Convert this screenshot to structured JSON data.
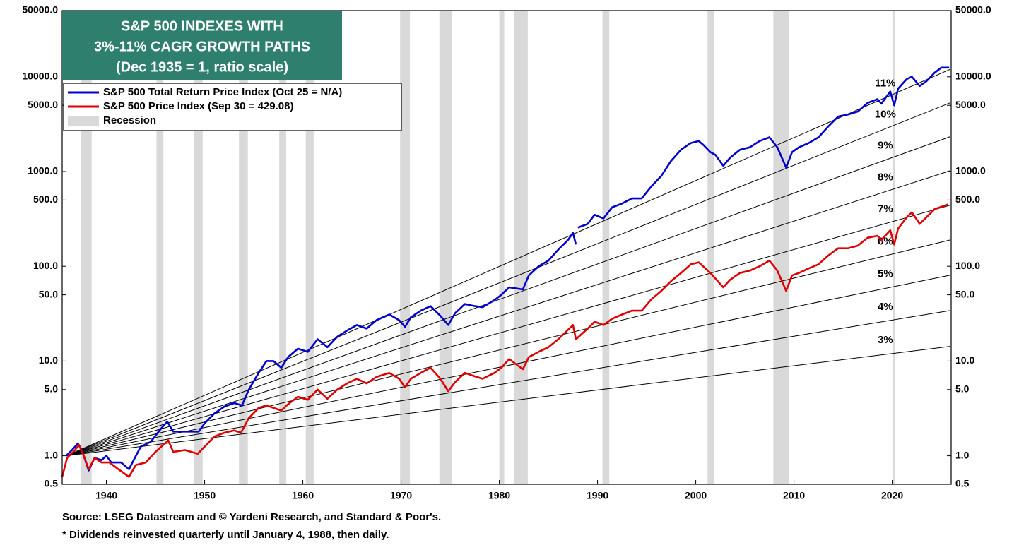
{
  "chart_data": {
    "type": "line",
    "title_lines": [
      "S&P 500 INDEXES WITH",
      "3%-11% CAGR GROWTH PATHS"
    ],
    "subtitle": "(Dec 1935 = 1, ratio scale)",
    "yscale": "log",
    "xlim": [
      1935.5,
      2026
    ],
    "xticks": [
      1940,
      1950,
      1960,
      1970,
      1980,
      1990,
      2000,
      2010,
      2020
    ],
    "ylim": [
      0.5,
      50000
    ],
    "yticks": [
      0.5,
      {
        "value": 1,
        "label": "1.0"
      },
      {
        "value": 5,
        "label": "5.0"
      },
      {
        "value": 10,
        "label": "10.0"
      },
      {
        "value": 50,
        "label": "50.0"
      },
      {
        "value": 100,
        "label": "100.0"
      },
      {
        "value": 500,
        "label": "500.0"
      },
      {
        "value": 1000,
        "label": "1000.0"
      },
      {
        "value": 5000,
        "label": "5000.0"
      },
      {
        "value": 10000,
        "label": "10000.0"
      },
      {
        "value": 50000,
        "label": "50000.0"
      }
    ],
    "y2lim": [
      0.5,
      50000
    ],
    "y2ticks": [
      0.5,
      {
        "value": 1,
        "label": "1.0"
      },
      {
        "value": 5,
        "label": "5.0"
      },
      {
        "value": 10,
        "label": "10.0"
      },
      {
        "value": 50,
        "label": "50.0"
      },
      {
        "value": 100,
        "label": "100.0"
      },
      {
        "value": 500,
        "label": "500.0"
      },
      {
        "value": 1000,
        "label": "1000.0"
      },
      {
        "value": 5000,
        "label": "5000.0"
      },
      {
        "value": 10000,
        "label": "10000.0"
      },
      {
        "value": 50000,
        "label": "50000.0"
      }
    ],
    "grid": false,
    "legend": "top-left",
    "series": [
      {
        "name": "S&P 500 Total Return Price Index (Oct 25 = N/A)",
        "color": "#0000cc",
        "x": [
          1935.9,
          1936.5,
          1937.1,
          1937.5,
          1938.2,
          1938.8,
          1939.5,
          1940.0,
          1940.5,
          1941.5,
          1942.3,
          1943.0,
          1943.5,
          1944.5,
          1945.5,
          1946.2,
          1946.8,
          1948.0,
          1949.4,
          1950.0,
          1951.0,
          1952.0,
          1953.0,
          1953.8,
          1954.5,
          1955.5,
          1956.3,
          1957.0,
          1957.8,
          1958.5,
          1959.5,
          1960.5,
          1961.5,
          1962.5,
          1963.5,
          1964.5,
          1965.5,
          1966.5,
          1967.5,
          1968.8,
          1969.8,
          1970.4,
          1971.0,
          1972.0,
          1973.0,
          1974.0,
          1974.8,
          1975.5,
          1976.5,
          1977.5,
          1978.3,
          1979.5,
          1980.2,
          1981.0,
          1982.4,
          1983.0,
          1984.0,
          1985.0,
          1986.0,
          1987.0,
          1987.5,
          1987.8,
          1987.9,
          1988.0,
          1989.0,
          1989.7,
          1990.6,
          1991.5,
          1992.5,
          1993.5,
          1994.5,
          1995.5,
          1996.5,
          1997.5,
          1998.5,
          1999.5,
          2000.3,
          2000.8,
          2001.5,
          2002.0,
          2002.8,
          2003.5,
          2004.5,
          2005.5,
          2006.5,
          2007.5,
          2008.3,
          2009.2,
          2009.8,
          2010.5,
          2011.5,
          2012.5,
          2013.5,
          2014.5,
          2015.5,
          2016.5,
          2017.5,
          2018.5,
          2018.9,
          2019.8,
          2020.2,
          2020.6,
          2021.5,
          2022.0,
          2022.8,
          2023.5,
          2024.3,
          2025.0,
          2025.8
        ],
        "values": [
          1.0,
          1.15,
          1.35,
          1.15,
          0.7,
          0.95,
          0.9,
          1.0,
          0.85,
          0.85,
          0.72,
          1.0,
          1.25,
          1.4,
          1.9,
          2.3,
          1.8,
          1.8,
          1.8,
          2.2,
          2.8,
          3.3,
          3.6,
          3.4,
          5.0,
          7.5,
          10,
          10,
          8.5,
          11,
          13.5,
          12.5,
          17,
          14,
          18,
          21,
          24,
          22,
          27,
          31,
          27,
          23,
          29,
          34,
          38,
          30,
          24,
          32,
          40,
          38,
          37,
          44,
          50,
          60,
          57,
          80,
          100,
          115,
          150,
          190,
          225,
          170,
          null,
          256,
          280,
          350,
          320,
          420,
          460,
          520,
          520,
          700,
          900,
          1300,
          1700,
          2000,
          2100,
          1900,
          1600,
          1500,
          1150,
          1400,
          1700,
          1800,
          2100,
          2300,
          1800,
          1100,
          1600,
          1800,
          2000,
          2300,
          3000,
          3800,
          4000,
          4300,
          5300,
          5800,
          5200,
          7000,
          5000,
          7500,
          9500,
          10000,
          8000,
          9000,
          11000,
          12500,
          12500
        ]
      },
      {
        "name": "S&P 500 Price Index (Sep 30 = 429.08)",
        "color": "#e00000",
        "x": [
          1935.5,
          1936.0,
          1936.8,
          1937.2,
          1937.7,
          1938.2,
          1938.8,
          1939.5,
          1940.3,
          1941.0,
          1942.3,
          1943.0,
          1944.0,
          1945.0,
          1946.3,
          1946.8,
          1948.0,
          1949.3,
          1950.0,
          1951.0,
          1952.0,
          1953.0,
          1953.7,
          1954.5,
          1955.5,
          1956.3,
          1957.8,
          1958.5,
          1959.5,
          1960.5,
          1961.5,
          1962.5,
          1963.5,
          1964.5,
          1965.5,
          1966.5,
          1967.5,
          1968.8,
          1969.8,
          1970.4,
          1971.0,
          1972.0,
          1973.0,
          1974.0,
          1974.8,
          1975.5,
          1976.5,
          1977.5,
          1978.3,
          1979.5,
          1980.2,
          1981.0,
          1982.4,
          1983.0,
          1984.0,
          1985.0,
          1986.0,
          1987.5,
          1987.8,
          1989.0,
          1989.7,
          1990.6,
          1991.5,
          1992.5,
          1993.5,
          1994.5,
          1995.5,
          1996.5,
          1997.5,
          1998.5,
          1999.5,
          2000.3,
          2001.5,
          2002.8,
          2003.5,
          2004.5,
          2005.5,
          2006.5,
          2007.5,
          2008.3,
          2009.2,
          2009.8,
          2010.5,
          2011.5,
          2012.5,
          2013.5,
          2014.5,
          2015.5,
          2016.5,
          2017.5,
          2018.5,
          2018.9,
          2019.8,
          2020.2,
          2020.6,
          2021.5,
          2022.0,
          2022.8,
          2023.5,
          2024.3,
          2025.7
        ],
        "values": [
          0.6,
          0.95,
          1.15,
          1.3,
          1.0,
          0.72,
          0.95,
          0.85,
          0.85,
          0.75,
          0.6,
          0.8,
          0.85,
          1.1,
          1.45,
          1.1,
          1.15,
          1.05,
          1.25,
          1.6,
          1.75,
          1.85,
          1.75,
          2.5,
          3.2,
          3.4,
          3.0,
          3.5,
          4.2,
          3.9,
          5.0,
          4.0,
          5.0,
          5.8,
          6.5,
          5.8,
          6.8,
          7.5,
          6.5,
          5.3,
          6.5,
          7.5,
          8.5,
          6.5,
          4.8,
          6.0,
          7.5,
          6.9,
          6.5,
          7.5,
          8.5,
          10.5,
          8.2,
          11,
          12.5,
          14,
          17,
          24,
          17,
          22,
          26,
          24,
          28,
          31,
          34,
          34,
          45,
          55,
          70,
          85,
          105,
          110,
          85,
          60,
          72,
          85,
          90,
          100,
          115,
          90,
          55,
          80,
          85,
          95,
          105,
          130,
          155,
          155,
          165,
          200,
          210,
          190,
          240,
          170,
          250,
          330,
          370,
          280,
          330,
          400,
          450
        ]
      }
    ],
    "growth_paths": [
      {
        "name": "3%",
        "color": "#000000",
        "x": [
          1935.92,
          2025.9
        ],
        "values": [
          1,
          14.3
        ]
      },
      {
        "name": "4%",
        "color": "#000000",
        "x": [
          1935.92,
          2025.9
        ],
        "values": [
          1,
          34.12
        ]
      },
      {
        "name": "5%",
        "color": "#000000",
        "x": [
          1935.92,
          2025.9
        ],
        "values": [
          1,
          80.73
        ]
      },
      {
        "name": "6%",
        "color": "#000000",
        "x": [
          1935.92,
          2025.9
        ],
        "values": [
          1,
          189.5
        ]
      },
      {
        "name": "7%",
        "color": "#000000",
        "x": [
          1935.92,
          2025.9
        ],
        "values": [
          1,
          441.1
        ]
      },
      {
        "name": "8%",
        "color": "#000000",
        "x": [
          1935.92,
          2025.9
        ],
        "values": [
          1,
          1019
        ]
      },
      {
        "name": "9%",
        "color": "#000000",
        "x": [
          1935.92,
          2025.9
        ],
        "values": [
          1,
          2335
        ]
      },
      {
        "name": "10%",
        "color": "#000000",
        "x": [
          1935.92,
          2025.9
        ],
        "values": [
          1,
          5313
        ]
      },
      {
        "name": "11%",
        "color": "#000000",
        "x": [
          1935.92,
          2025.9
        ],
        "values": [
          1,
          12000
        ]
      }
    ],
    "recessions": {
      "name": "Recession",
      "color": "#d9d9d9",
      "periods": [
        [
          1937.4,
          1938.5
        ],
        [
          1945.1,
          1945.8
        ],
        [
          1948.9,
          1949.8
        ],
        [
          1953.5,
          1954.4
        ],
        [
          1957.6,
          1958.3
        ],
        [
          1960.3,
          1961.1
        ],
        [
          1969.9,
          1970.9
        ],
        [
          1973.9,
          1975.2
        ],
        [
          1980.0,
          1980.5
        ],
        [
          1981.5,
          1982.9
        ],
        [
          1990.5,
          1991.2
        ],
        [
          2001.2,
          2001.9
        ],
        [
          2007.9,
          2009.5
        ],
        [
          2020.1,
          2020.3
        ]
      ]
    },
    "notes": [
      "Source: LSEG Datastream and © Yardeni Research, and Standard & Poor's.",
      "* Dividends reinvested quarterly until January 4, 1988, then daily."
    ]
  }
}
